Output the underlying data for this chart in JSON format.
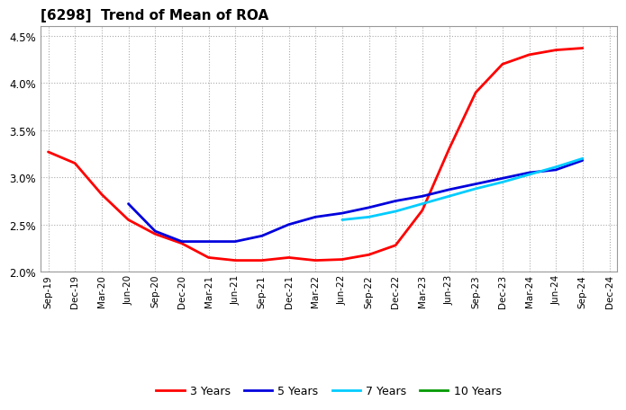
{
  "title": "[6298]  Trend of Mean of ROA",
  "x_labels": [
    "Sep-19",
    "Dec-19",
    "Mar-20",
    "Jun-20",
    "Sep-20",
    "Dec-20",
    "Mar-21",
    "Jun-21",
    "Sep-21",
    "Dec-21",
    "Mar-22",
    "Jun-22",
    "Sep-22",
    "Dec-22",
    "Mar-23",
    "Jun-23",
    "Sep-23",
    "Dec-23",
    "Mar-24",
    "Jun-24",
    "Sep-24",
    "Dec-24"
  ],
  "ylim": [
    0.02,
    0.046
  ],
  "yticks": [
    0.02,
    0.025,
    0.03,
    0.035,
    0.04,
    0.045
  ],
  "series": {
    "3 Years": {
      "color": "#FF0000",
      "linewidth": 2.0,
      "values": [
        0.0327,
        0.0315,
        0.0282,
        0.0255,
        0.024,
        0.023,
        0.0215,
        0.0212,
        0.0212,
        0.0215,
        0.0212,
        0.0213,
        0.0218,
        0.0228,
        0.0265,
        0.033,
        0.039,
        0.042,
        0.043,
        0.0435,
        0.0437,
        null
      ]
    },
    "5 Years": {
      "color": "#0000DD",
      "linewidth": 2.0,
      "values": [
        null,
        null,
        null,
        0.0272,
        0.0243,
        0.0232,
        0.0232,
        0.0232,
        0.0238,
        0.025,
        0.0258,
        0.0262,
        0.0268,
        0.0275,
        0.028,
        0.0287,
        0.0293,
        0.0299,
        0.0305,
        0.0308,
        0.0318,
        null
      ]
    },
    "7 Years": {
      "color": "#00CCFF",
      "linewidth": 2.0,
      "values": [
        null,
        null,
        null,
        null,
        null,
        null,
        null,
        null,
        null,
        null,
        null,
        0.0255,
        0.0258,
        0.0264,
        0.0272,
        0.028,
        0.0288,
        0.0295,
        0.0303,
        0.0311,
        0.032,
        null
      ]
    },
    "10 Years": {
      "color": "#009900",
      "linewidth": 2.0,
      "values": [
        null,
        null,
        null,
        null,
        null,
        null,
        null,
        null,
        null,
        null,
        null,
        null,
        null,
        null,
        null,
        null,
        null,
        null,
        null,
        null,
        null,
        null
      ]
    }
  },
  "background_color": "#FFFFFF",
  "grid_color": "#AAAAAA",
  "legend_items": [
    {
      "label": "3 Years",
      "color": "#FF0000"
    },
    {
      "label": "5 Years",
      "color": "#0000DD"
    },
    {
      "label": "7 Years",
      "color": "#00CCFF"
    },
    {
      "label": "10 Years",
      "color": "#009900"
    }
  ]
}
